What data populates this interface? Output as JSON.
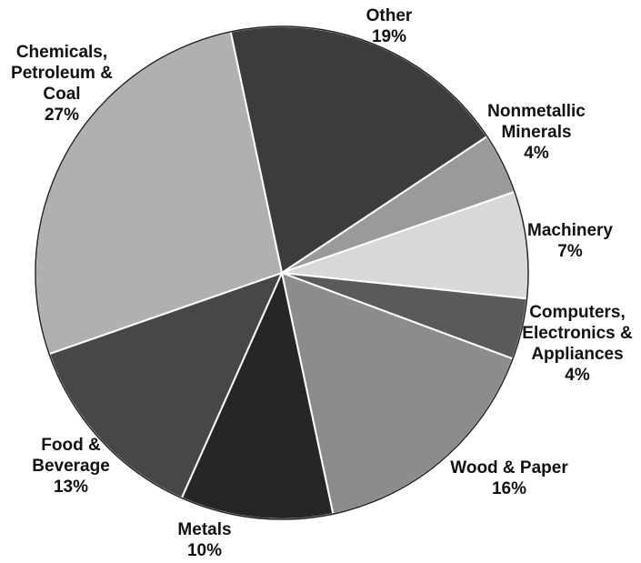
{
  "chart_data": {
    "type": "pie",
    "categories": [
      [
        "Other"
      ],
      [
        "Nonmetallic",
        "Minerals"
      ],
      [
        "Machinery"
      ],
      [
        "Computers,",
        "Electronics &",
        "Appliances"
      ],
      [
        "Wood & Paper"
      ],
      [
        "Metals"
      ],
      [
        "Food &",
        "Beverage"
      ],
      [
        "Chemicals,",
        "Petroleum &",
        "Coal"
      ]
    ],
    "values": [
      19,
      4,
      7,
      4,
      16,
      10,
      13,
      27
    ],
    "value_labels": [
      "19%",
      "4%",
      "7%",
      "4%",
      "16%",
      "10%",
      "13%",
      "27%"
    ],
    "colors": [
      "#3c3c3c",
      "#9a9a9a",
      "#d8d8d8",
      "#5a5a5a",
      "#8c8c8c",
      "#262626",
      "#474747",
      "#b0b0b0"
    ]
  }
}
